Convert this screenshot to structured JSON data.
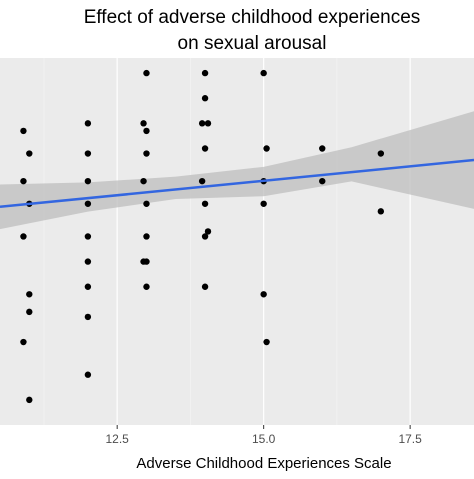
{
  "chart_data": {
    "type": "scatter",
    "title": [
      "Effect of adverse childhood experiences",
      "on sexual arousal"
    ],
    "x_label": "Adverse Childhood Experiences Scale",
    "xlim": [
      10.5,
      18.59
    ],
    "xticks": [
      12.5,
      {
        "value": 15,
        "label": "15.0"
      },
      17.5
    ],
    "xminor": [
      11.25,
      13.75,
      16.25
    ],
    "ylim": [
      0,
      14.6
    ],
    "point_color": "#000000",
    "x": [
      10.9,
      11,
      10.9,
      11,
      10.9,
      11,
      11,
      10.9,
      11,
      12,
      12,
      12,
      12,
      12,
      12,
      12,
      12,
      12,
      13,
      12.95,
      13,
      13,
      12.95,
      13,
      13,
      13,
      12.95,
      13,
      14,
      14,
      13.95,
      14.05,
      14,
      13.95,
      14,
      14.05,
      14,
      14,
      15,
      15.05,
      15,
      15,
      15,
      15.05,
      16,
      16,
      17,
      17
    ],
    "y": [
      11.7,
      10.8,
      9.7,
      8.8,
      7.5,
      5.2,
      4.5,
      3.3,
      1.0,
      12.0,
      10.8,
      9.7,
      8.8,
      7.5,
      6.5,
      5.5,
      4.3,
      2.0,
      14.0,
      12.0,
      11.7,
      10.8,
      9.7,
      8.8,
      7.5,
      6.5,
      6.5,
      5.5,
      14.0,
      13.0,
      12.0,
      12.0,
      11.0,
      9.7,
      8.8,
      7.7,
      7.5,
      5.5,
      14.0,
      11.0,
      9.7,
      8.8,
      5.2,
      3.3,
      11.0,
      9.7,
      10.8,
      8.5
    ],
    "fit": {
      "color": "#3366e0",
      "x": [
        10.5,
        18.59
      ],
      "y": [
        8.68,
        10.54
      ]
    },
    "band": {
      "color": "#bdbdbd",
      "x": [
        10.5,
        12,
        13.5,
        15,
        16.5,
        18.59
      ],
      "upper": [
        9.57,
        9.65,
        9.88,
        10.27,
        11.05,
        12.48
      ],
      "lower": [
        7.79,
        8.49,
        8.99,
        9.1,
        9.69,
        8.6
      ]
    }
  }
}
